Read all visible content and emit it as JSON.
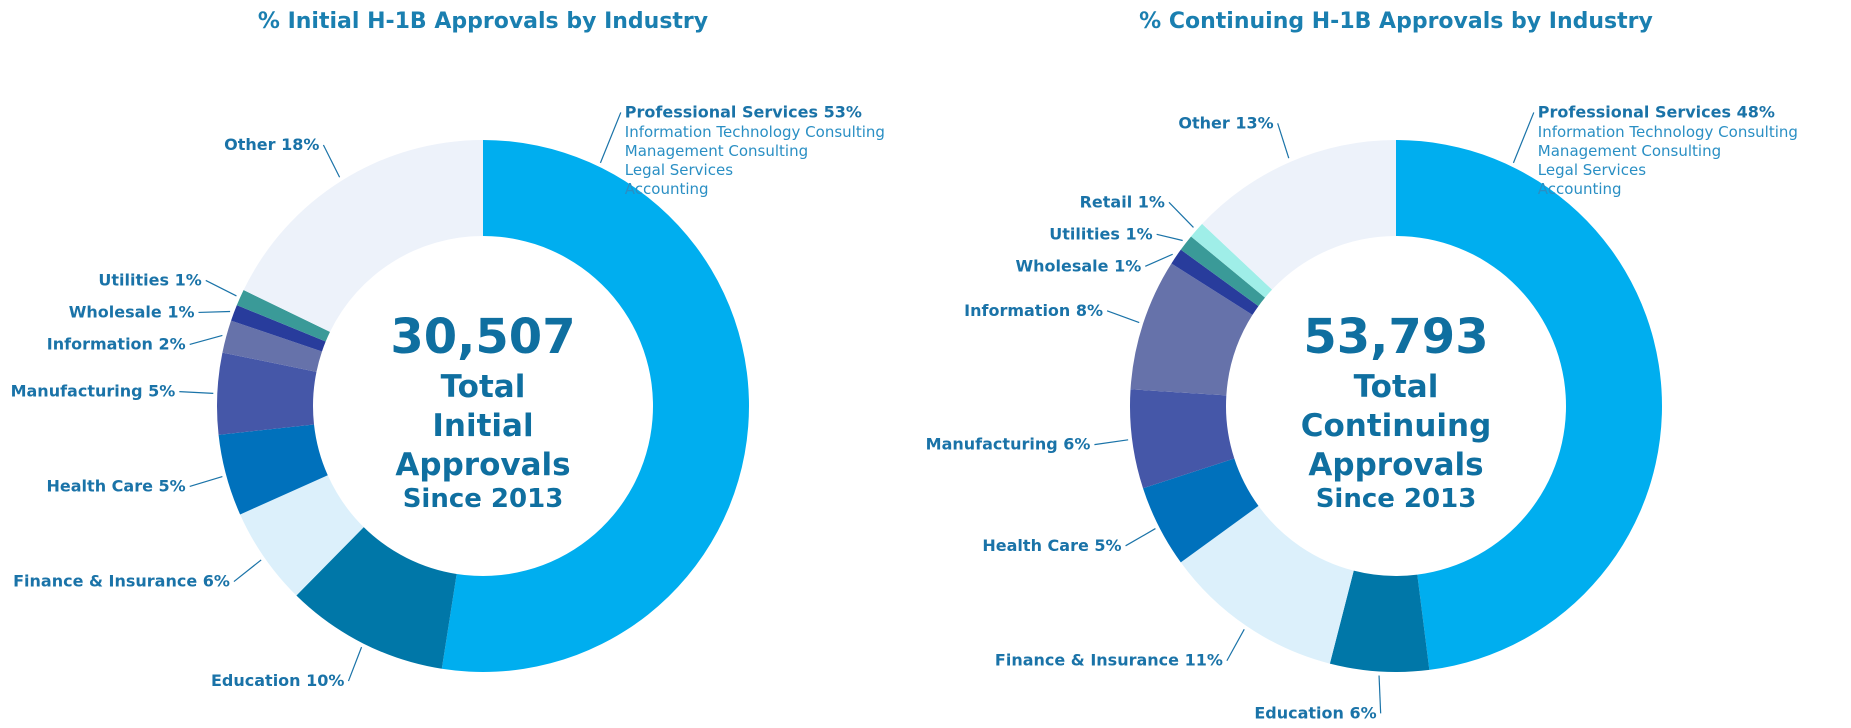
{
  "chart_data": [
    {
      "type": "donut",
      "title": "% Initial H-1B Approvals by Industry",
      "categories": [
        "Professional Services",
        "Education",
        "Finance & Insurance",
        "Health Care",
        "Manufacturing",
        "Information",
        "Wholesale",
        "Utilities",
        "Other"
      ],
      "values": [
        53,
        10,
        6,
        5,
        5,
        2,
        1,
        1,
        18
      ],
      "value_labels": [
        "53%",
        "10%",
        "6%",
        "5%",
        "5%",
        "2%",
        "1%",
        "1%",
        "18%"
      ],
      "colors": [
        "#00aeef",
        "#0077a8",
        "#dcf0fb",
        "#0071bc",
        "#4557a8",
        "#6672aa",
        "#283c9c",
        "#3a9a98",
        "#edf2fa"
      ],
      "details": [
        "Information Technology Consulting",
        "Management Consulting",
        "Legal Services",
        "Accounting"
      ],
      "center_text": [
        "30,507",
        "Total",
        "Initial",
        "Approvals",
        "Since 2013"
      ]
    },
    {
      "type": "donut",
      "title": "% Continuing H-1B Approvals by Industry",
      "categories": [
        "Professional Services",
        "Education",
        "Finance & Insurance",
        "Health Care",
        "Manufacturing",
        "Information",
        "Wholesale",
        "Utilities",
        "Retail",
        "Other"
      ],
      "values": [
        48,
        6,
        11,
        5,
        6,
        8,
        1,
        1,
        1,
        13
      ],
      "value_labels": [
        "48%",
        "6%",
        "11%",
        "5%",
        "6%",
        "8%",
        "1%",
        "1%",
        "1%",
        "13%"
      ],
      "colors": [
        "#00aeef",
        "#0077a8",
        "#dcf0fb",
        "#0071bc",
        "#4557a8",
        "#6672aa",
        "#283c9c",
        "#3a9a98",
        "#9feee8",
        "#edf2fa"
      ],
      "details": [
        "Information Technology Consulting",
        "Management Consulting",
        "Legal Services",
        "Accounting"
      ],
      "center_text": [
        "53,793",
        "Total",
        "Continuing",
        "Approvals",
        "Since 2013"
      ]
    }
  ]
}
